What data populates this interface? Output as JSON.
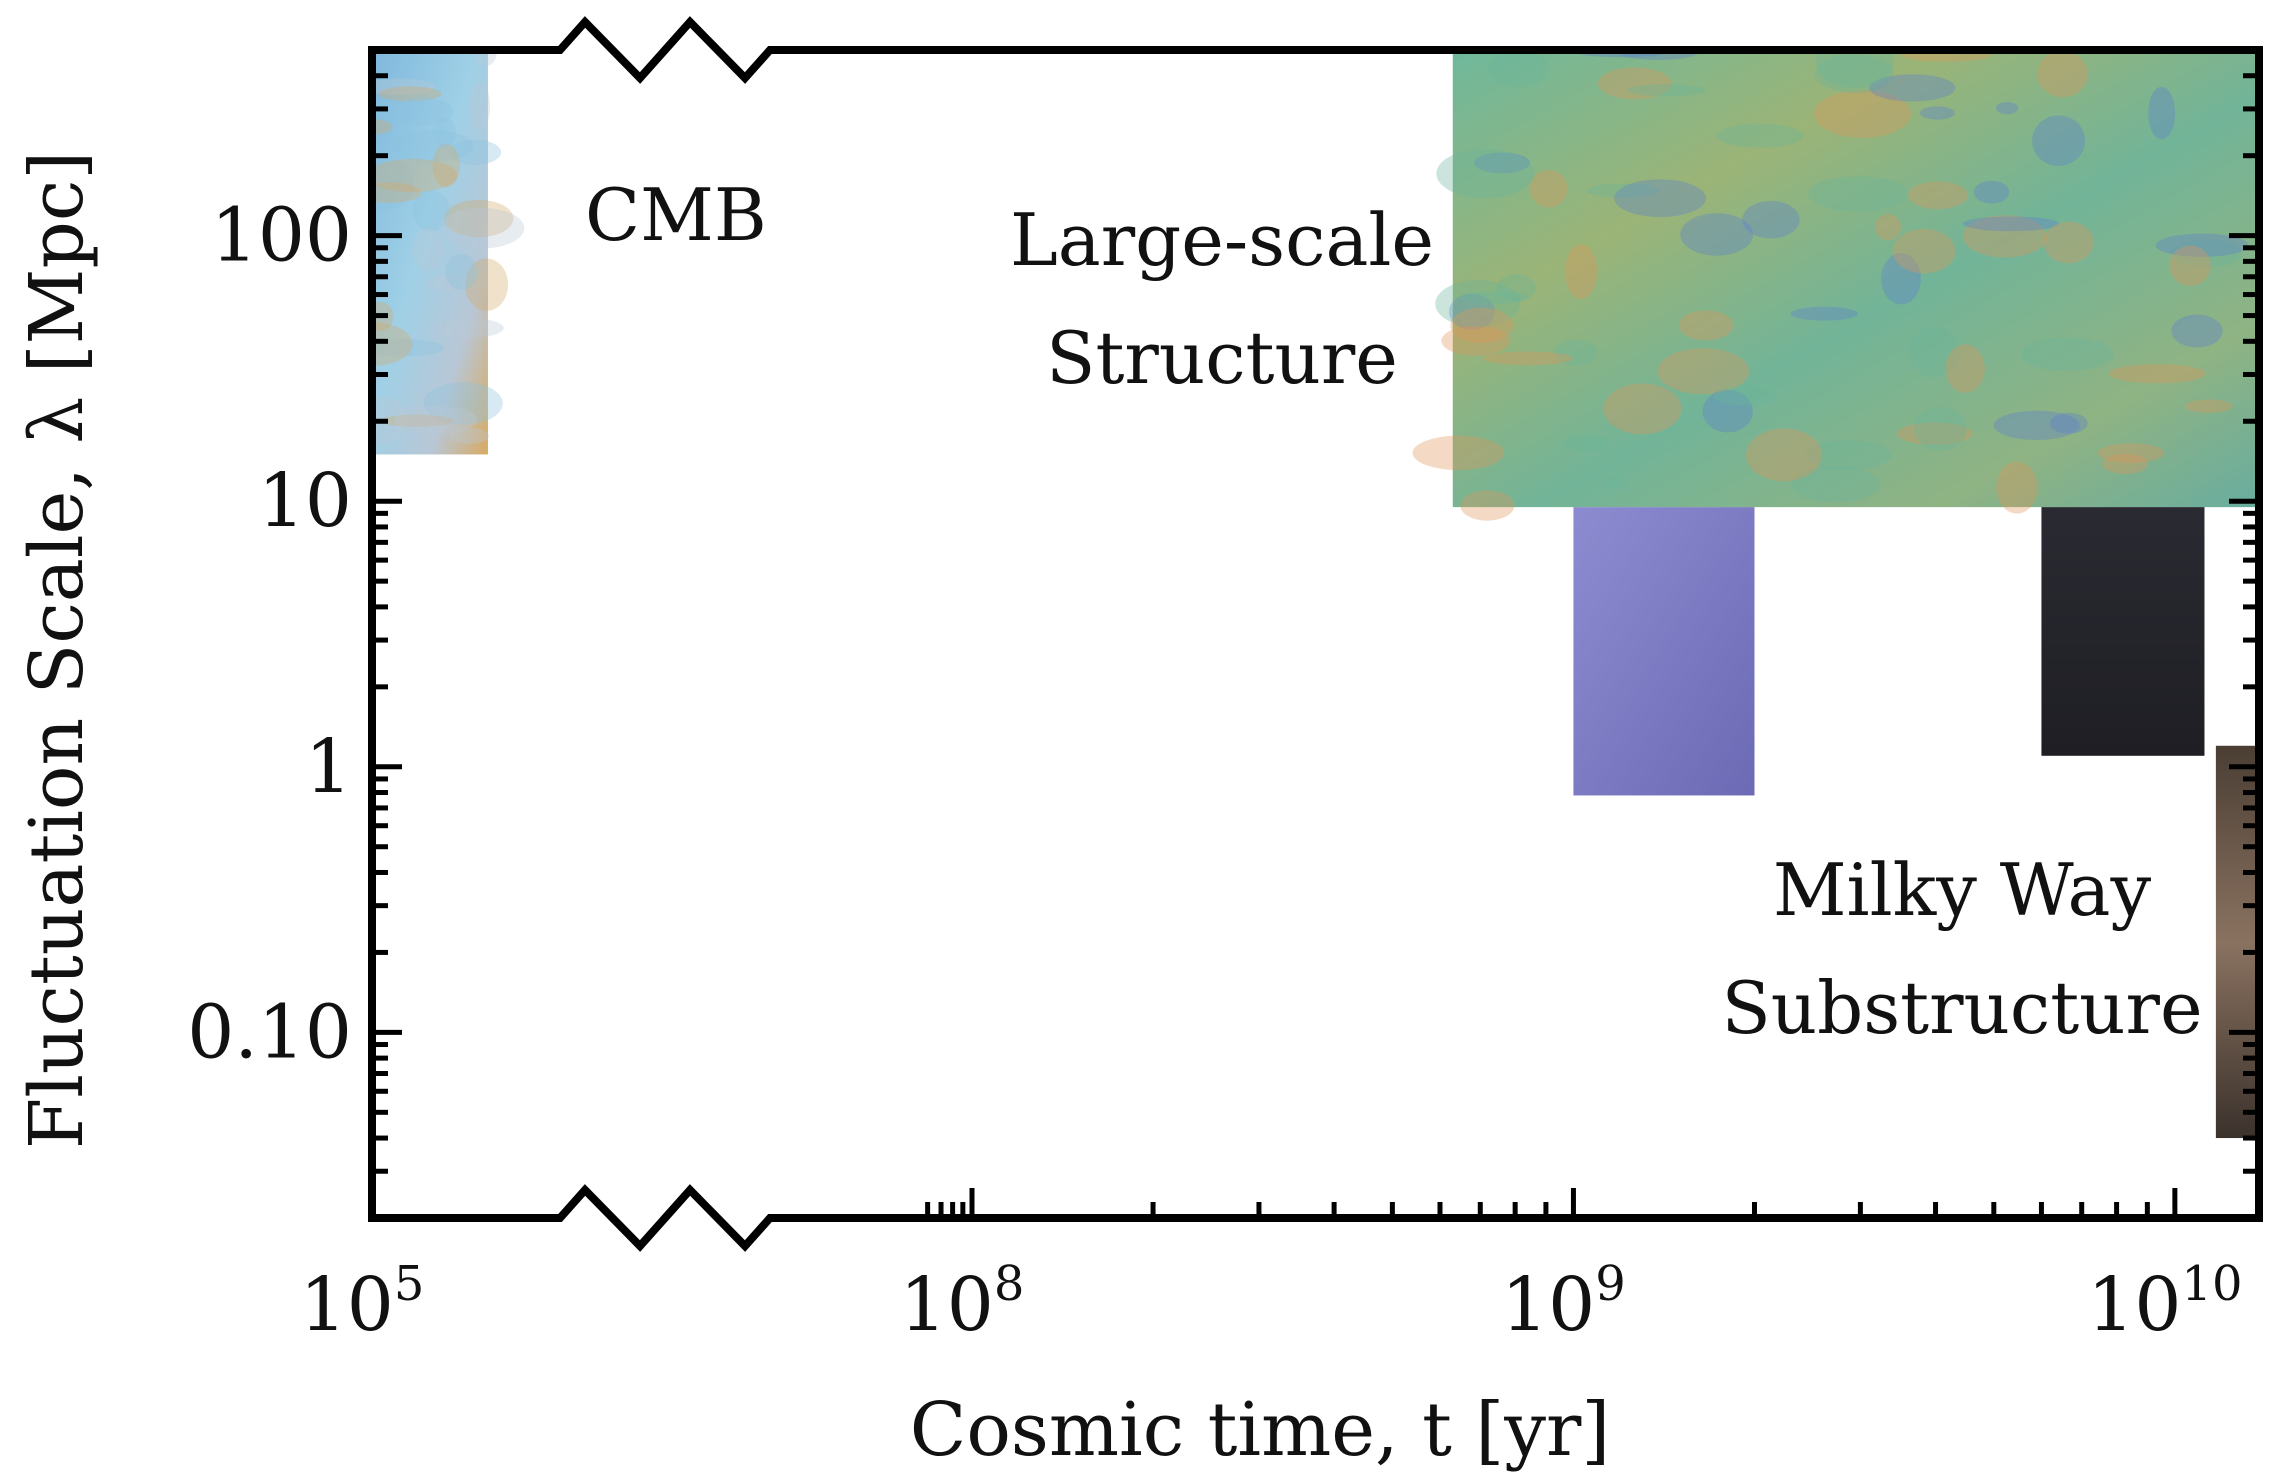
{
  "chart_data": {
    "type": "scatter",
    "title": "",
    "xlabel": "Cosmic time, t [yr]",
    "ylabel": "Fluctuation Scale, λ [Mpc]",
    "x_scale": "log (broken axis between 10^5 and 10^8)",
    "y_scale": "log",
    "xlim": [
      100000,
      13800000000
    ],
    "ylim": [
      0.02,
      500
    ],
    "x_ticks": [
      {
        "value": 100000,
        "base": "10",
        "exp": "5"
      },
      {
        "value": 100000000,
        "base": "10",
        "exp": "8"
      },
      {
        "value": 1000000000,
        "base": "10",
        "exp": "9"
      },
      {
        "value": 10000000000,
        "base": "10",
        "exp": "10"
      }
    ],
    "y_ticks": [
      {
        "value": 100,
        "label": "100"
      },
      {
        "value": 10,
        "label": "10"
      },
      {
        "value": 1,
        "label": "1"
      },
      {
        "value": 0.1,
        "label": "0.10"
      }
    ],
    "grid": false,
    "regions": [
      {
        "name": "CMB",
        "label_lines": [
          "CMB"
        ],
        "x": [
          100000,
          380000
        ],
        "y": [
          15,
          500
        ],
        "colors": [
          "#8cc3e0",
          "#d4a866",
          "#b9c9d6"
        ],
        "label_x": 300000,
        "label_y": 120
      },
      {
        "name": "Large-scale Structure",
        "label_lines": [
          "Large-scale",
          "Structure"
        ],
        "x": [
          630000000,
          13800000000
        ],
        "y": [
          9.5,
          500
        ],
        "colors": [
          "#6bb59b",
          "#e0955a",
          "#5b7fd0"
        ],
        "label_x": 500000000,
        "label_y": 60
      },
      {
        "name": "Milky Way Substructure",
        "label_lines": [
          "Milky Way",
          "Substructure"
        ],
        "x": [
          1000000000,
          13800000000
        ],
        "y": [
          0.04,
          9.5
        ],
        "colors": [
          "#7a78c0",
          "#24242a",
          "#6b5644"
        ],
        "label_x": 4200000000,
        "label_y": 0.13
      }
    ]
  }
}
